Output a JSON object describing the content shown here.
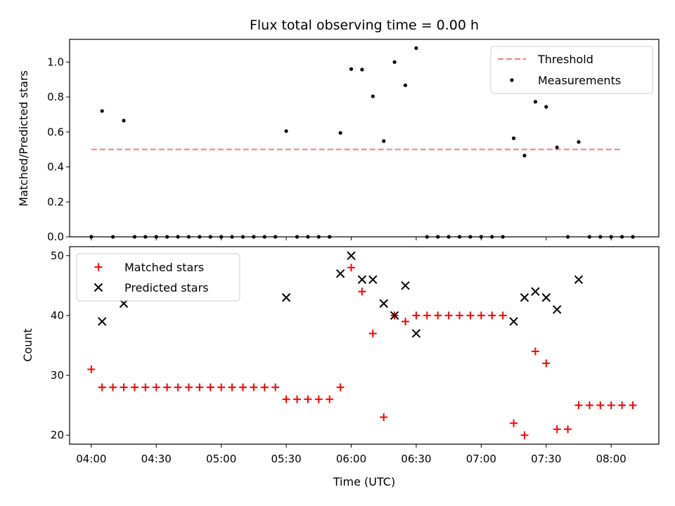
{
  "chart_data": [
    {
      "type": "scatter",
      "title": "Flux total observing time = 0.00 h",
      "ylabel": "Matched/Predicted stars",
      "ylim": [
        0,
        1.13
      ],
      "yticks": [
        0.0,
        0.2,
        0.4,
        0.6,
        0.8,
        1.0
      ],
      "ytick_labels": [
        "0.0",
        "0.2",
        "0.4",
        "0.6",
        "0.8",
        "1.0"
      ],
      "legend_position": "top-right",
      "threshold": {
        "name": "Threshold",
        "y": 0.5,
        "x_start": "04:00",
        "x_end": "08:05",
        "color": "#ff7a7a"
      },
      "series": [
        {
          "name": "Measurements",
          "color": "#000000",
          "points": [
            {
              "x": "04:00",
              "y": 0.0
            },
            {
              "x": "04:05",
              "y": 0.72
            },
            {
              "x": "04:10",
              "y": 0.0
            },
            {
              "x": "04:15",
              "y": 0.665
            },
            {
              "x": "04:20",
              "y": 0.0
            },
            {
              "x": "04:25",
              "y": 0.0
            },
            {
              "x": "04:30",
              "y": 0.0
            },
            {
              "x": "04:35",
              "y": 0.0
            },
            {
              "x": "04:40",
              "y": 0.0
            },
            {
              "x": "04:45",
              "y": 0.0
            },
            {
              "x": "04:50",
              "y": 0.0
            },
            {
              "x": "04:55",
              "y": 0.0
            },
            {
              "x": "05:00",
              "y": 0.0
            },
            {
              "x": "05:05",
              "y": 0.0
            },
            {
              "x": "05:10",
              "y": 0.0
            },
            {
              "x": "05:15",
              "y": 0.0
            },
            {
              "x": "05:20",
              "y": 0.0
            },
            {
              "x": "05:25",
              "y": 0.0
            },
            {
              "x": "05:30",
              "y": 0.605
            },
            {
              "x": "05:35",
              "y": 0.0
            },
            {
              "x": "05:40",
              "y": 0.0
            },
            {
              "x": "05:45",
              "y": 0.0
            },
            {
              "x": "05:50",
              "y": 0.0
            },
            {
              "x": "05:55",
              "y": 0.595
            },
            {
              "x": "06:00",
              "y": 0.96
            },
            {
              "x": "06:05",
              "y": 0.957
            },
            {
              "x": "06:10",
              "y": 0.804
            },
            {
              "x": "06:15",
              "y": 0.548
            },
            {
              "x": "06:20",
              "y": 1.0
            },
            {
              "x": "06:25",
              "y": 0.867
            },
            {
              "x": "06:30",
              "y": 1.08
            },
            {
              "x": "06:35",
              "y": 0.0
            },
            {
              "x": "06:40",
              "y": 0.0
            },
            {
              "x": "06:45",
              "y": 0.0
            },
            {
              "x": "06:50",
              "y": 0.0
            },
            {
              "x": "06:55",
              "y": 0.0
            },
            {
              "x": "07:00",
              "y": 0.0
            },
            {
              "x": "07:05",
              "y": 0.0
            },
            {
              "x": "07:10",
              "y": 0.0
            },
            {
              "x": "07:15",
              "y": 0.564
            },
            {
              "x": "07:20",
              "y": 0.465
            },
            {
              "x": "07:25",
              "y": 0.773
            },
            {
              "x": "07:30",
              "y": 0.744
            },
            {
              "x": "07:35",
              "y": 0.512
            },
            {
              "x": "07:40",
              "y": 0.0
            },
            {
              "x": "07:45",
              "y": 0.543
            },
            {
              "x": "07:50",
              "y": 0.0
            },
            {
              "x": "07:55",
              "y": 0.0
            },
            {
              "x": "08:00",
              "y": 0.0
            },
            {
              "x": "08:05",
              "y": 0.0
            },
            {
              "x": "08:10",
              "y": 0.0
            }
          ]
        }
      ]
    },
    {
      "type": "scatter",
      "xlabel": "Time (UTC)",
      "ylabel": "Count",
      "ylim": [
        18.5,
        51.5
      ],
      "yticks": [
        20,
        30,
        40,
        50
      ],
      "ytick_labels": [
        "20",
        "30",
        "40",
        "50"
      ],
      "xlim": [
        "03:50",
        "08:22"
      ],
      "xticks": [
        "04:00",
        "04:30",
        "05:00",
        "05:30",
        "06:00",
        "06:30",
        "07:00",
        "07:30",
        "08:00"
      ],
      "xtick_labels": [
        "04:00",
        "04:30",
        "05:00",
        "05:30",
        "06:00",
        "06:30",
        "07:00",
        "07:30",
        "08:00"
      ],
      "legend_position": "top-left",
      "series": [
        {
          "name": "Matched stars",
          "marker": "plus",
          "color": "#ff0000",
          "points": [
            {
              "x": "04:00",
              "y": 31
            },
            {
              "x": "04:05",
              "y": 28
            },
            {
              "x": "04:10",
              "y": 28
            },
            {
              "x": "04:15",
              "y": 28
            },
            {
              "x": "04:20",
              "y": 28
            },
            {
              "x": "04:25",
              "y": 28
            },
            {
              "x": "04:30",
              "y": 28
            },
            {
              "x": "04:35",
              "y": 28
            },
            {
              "x": "04:40",
              "y": 28
            },
            {
              "x": "04:45",
              "y": 28
            },
            {
              "x": "04:50",
              "y": 28
            },
            {
              "x": "04:55",
              "y": 28
            },
            {
              "x": "05:00",
              "y": 28
            },
            {
              "x": "05:05",
              "y": 28
            },
            {
              "x": "05:10",
              "y": 28
            },
            {
              "x": "05:15",
              "y": 28
            },
            {
              "x": "05:20",
              "y": 28
            },
            {
              "x": "05:25",
              "y": 28
            },
            {
              "x": "05:30",
              "y": 26
            },
            {
              "x": "05:35",
              "y": 26
            },
            {
              "x": "05:40",
              "y": 26
            },
            {
              "x": "05:45",
              "y": 26
            },
            {
              "x": "05:50",
              "y": 26
            },
            {
              "x": "05:55",
              "y": 28
            },
            {
              "x": "06:00",
              "y": 48
            },
            {
              "x": "06:05",
              "y": 44
            },
            {
              "x": "06:10",
              "y": 37
            },
            {
              "x": "06:15",
              "y": 23
            },
            {
              "x": "06:20",
              "y": 40
            },
            {
              "x": "06:25",
              "y": 39
            },
            {
              "x": "06:30",
              "y": 40
            },
            {
              "x": "06:35",
              "y": 40
            },
            {
              "x": "06:40",
              "y": 40
            },
            {
              "x": "06:45",
              "y": 40
            },
            {
              "x": "06:50",
              "y": 40
            },
            {
              "x": "06:55",
              "y": 40
            },
            {
              "x": "07:00",
              "y": 40
            },
            {
              "x": "07:05",
              "y": 40
            },
            {
              "x": "07:10",
              "y": 40
            },
            {
              "x": "07:15",
              "y": 22
            },
            {
              "x": "07:20",
              "y": 20
            },
            {
              "x": "07:25",
              "y": 34
            },
            {
              "x": "07:30",
              "y": 32
            },
            {
              "x": "07:35",
              "y": 21
            },
            {
              "x": "07:40",
              "y": 21
            },
            {
              "x": "07:45",
              "y": 25
            },
            {
              "x": "07:50",
              "y": 25
            },
            {
              "x": "07:55",
              "y": 25
            },
            {
              "x": "08:00",
              "y": 25
            },
            {
              "x": "08:05",
              "y": 25
            },
            {
              "x": "08:10",
              "y": 25
            }
          ]
        },
        {
          "name": "Predicted stars",
          "marker": "x",
          "color": "#000000",
          "points": [
            {
              "x": "04:05",
              "y": 39
            },
            {
              "x": "04:15",
              "y": 42
            },
            {
              "x": "05:30",
              "y": 43
            },
            {
              "x": "05:55",
              "y": 47
            },
            {
              "x": "06:00",
              "y": 50
            },
            {
              "x": "06:05",
              "y": 46
            },
            {
              "x": "06:10",
              "y": 46
            },
            {
              "x": "06:15",
              "y": 42
            },
            {
              "x": "06:20",
              "y": 40
            },
            {
              "x": "06:25",
              "y": 45
            },
            {
              "x": "06:30",
              "y": 37
            },
            {
              "x": "07:15",
              "y": 39
            },
            {
              "x": "07:20",
              "y": 43
            },
            {
              "x": "07:25",
              "y": 44
            },
            {
              "x": "07:30",
              "y": 43
            },
            {
              "x": "07:35",
              "y": 41
            },
            {
              "x": "07:45",
              "y": 46
            }
          ]
        }
      ]
    }
  ]
}
